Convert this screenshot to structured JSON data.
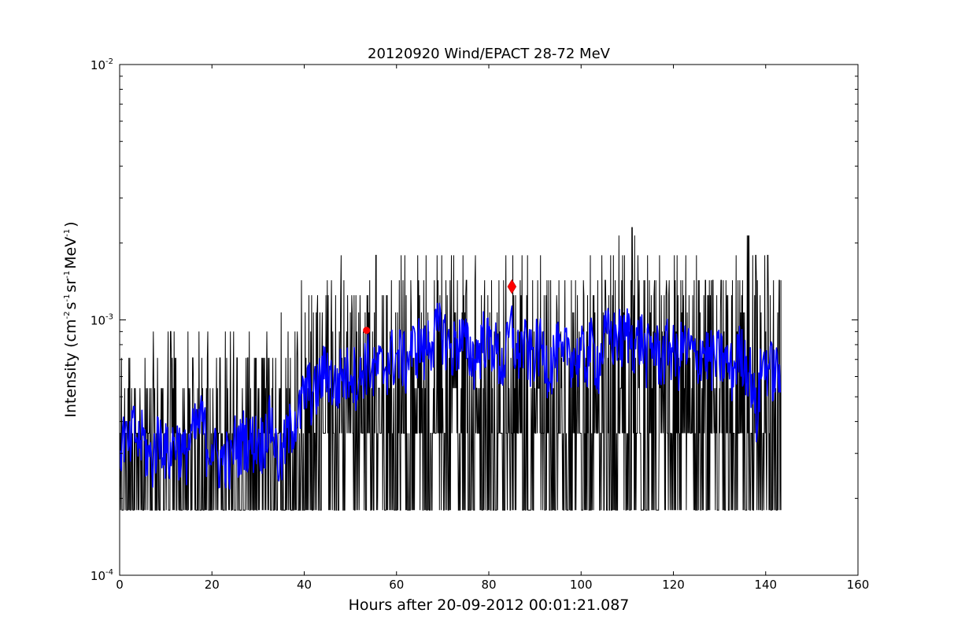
{
  "chart_data": {
    "type": "line",
    "title": "20120920 Wind/EPACT 28-72 MeV",
    "xlabel": "Hours after 20-09-2012 00:01:21.087",
    "ylabel": "Intensity (cm^-2 s^-1 sr^-1 MeV^-1)",
    "ylabel_parts": [
      "Intensity (cm",
      "-2",
      "s",
      "-1",
      "sr",
      "-1",
      "MeV",
      "-1",
      ")"
    ],
    "xlim": [
      0,
      160
    ],
    "ylim": [
      0.0001,
      0.01
    ],
    "yscale": "log",
    "xticks": [
      "0",
      "20",
      "40",
      "60",
      "80",
      "100",
      "120",
      "140",
      "160"
    ],
    "yticks": [
      {
        "base": "10",
        "exp": "-4",
        "value": 0.0001
      },
      {
        "base": "10",
        "exp": "-3",
        "value": 0.001
      },
      {
        "base": "10",
        "exp": "-2",
        "value": 0.01
      }
    ],
    "grid": false,
    "value_scale": 0.0001,
    "count_levels": [
      1.8,
      3.6,
      5.4,
      7.1,
      9.0,
      10.7,
      12.5,
      14.3,
      17.9,
      21.4,
      23.0
    ],
    "series": [
      {
        "name": "raw intensity (hourly range)",
        "color": "#000000",
        "hours_start": 0,
        "hour_max": [
          7.1,
          5.4,
          7.1,
          5.4,
          5.4,
          7.1,
          5.4,
          9.0,
          7.1,
          5.4,
          9.0,
          9.0,
          7.1,
          5.4,
          9.0,
          7.1,
          5.4,
          9.0,
          7.1,
          9.0,
          5.4,
          7.1,
          9.0,
          7.1,
          9.0,
          7.1,
          5.4,
          7.1,
          9.0,
          7.1,
          7.1,
          9.0,
          7.1,
          7.1,
          5.4,
          10.7,
          9.0,
          7.1,
          9.0,
          14.3,
          10.7,
          12.5,
          12.5,
          10.7,
          12.5,
          14.3,
          12.5,
          12.5,
          17.9,
          12.5,
          12.5,
          14.3,
          12.5,
          12.5,
          14.3,
          17.9,
          12.5,
          12.5,
          14.3,
          17.9,
          14.3,
          17.9,
          12.5,
          14.3,
          17.9,
          14.3,
          17.9,
          17.9,
          21.4,
          17.9,
          14.3,
          17.9,
          17.9,
          14.3,
          17.9,
          14.3,
          21.4,
          17.9,
          14.3,
          14.3,
          14.3,
          12.5,
          14.3,
          17.9,
          14.3,
          17.9,
          14.3,
          17.9,
          17.9,
          14.3,
          14.3,
          17.9,
          14.3,
          14.3,
          12.5,
          17.9,
          14.3,
          14.3,
          14.3,
          17.9,
          14.3,
          14.3,
          17.9,
          14.3,
          17.9,
          14.3,
          17.9,
          17.9,
          21.4,
          17.9,
          14.3,
          23.0,
          17.9,
          14.3,
          17.9,
          14.3,
          14.3,
          17.9,
          14.3,
          14.3,
          17.9,
          14.3,
          17.9,
          14.3,
          14.3,
          17.9,
          14.3,
          14.3,
          14.3,
          17.9,
          14.3,
          14.3,
          14.3,
          17.9,
          14.3,
          14.3,
          21.4,
          17.9,
          14.3,
          17.9,
          17.9,
          14.3,
          14.3,
          14.3
        ],
        "hour_min": [
          1.8,
          1.8,
          1.8,
          1.8,
          1.8,
          1.8,
          1.8,
          1.8,
          1.8,
          1.8,
          1.8,
          1.8,
          1.8,
          1.8,
          1.8,
          1.8,
          1.8,
          1.8,
          1.8,
          1.8,
          1.8,
          1.8,
          1.8,
          1.8,
          1.8,
          1.8,
          1.8,
          1.8,
          1.8,
          1.8,
          1.8,
          1.8,
          1.8,
          1.8,
          1.8,
          1.8,
          1.8,
          1.8,
          1.8,
          1.8,
          1.8,
          1.8,
          1.8,
          1.8,
          3.6,
          1.8,
          1.8,
          1.8,
          1.8,
          3.6,
          1.8,
          1.8,
          3.6,
          1.8,
          1.8,
          1.8,
          3.6,
          1.8,
          1.8,
          1.8,
          1.8,
          3.6,
          1.8,
          1.8,
          3.6,
          1.8,
          1.8,
          1.8,
          3.6,
          1.8,
          1.8,
          1.8,
          3.6,
          1.8,
          1.8,
          1.8,
          1.8,
          3.6,
          1.8,
          1.8,
          1.8,
          1.8,
          3.6,
          1.8,
          1.8,
          1.8,
          3.6,
          1.8,
          1.8,
          1.8,
          3.6,
          1.8,
          1.8,
          1.8,
          1.8,
          3.6,
          1.8,
          1.8,
          1.8,
          3.6,
          1.8,
          1.8,
          1.8,
          3.6,
          1.8,
          1.8,
          1.8,
          1.8,
          3.6,
          1.8,
          1.8,
          1.8,
          3.6,
          1.8,
          1.8,
          1.8,
          1.8,
          3.6,
          1.8,
          1.8,
          1.8,
          1.8,
          1.8,
          3.6,
          1.8,
          1.8,
          1.8,
          1.8,
          3.6,
          1.8,
          1.8,
          1.8,
          1.8,
          1.8,
          3.6,
          1.8,
          1.8,
          1.8,
          1.8,
          1.8,
          1.8,
          1.8,
          1.8,
          1.8
        ]
      },
      {
        "name": "smoothed intensity (hourly)",
        "color": "#0000ff",
        "hours_start": 0,
        "values": [
          3.2,
          3.6,
          3.0,
          3.8,
          3.3,
          3.5,
          3.0,
          2.8,
          3.4,
          3.6,
          3.1,
          3.0,
          3.5,
          3.2,
          2.9,
          3.3,
          3.6,
          3.9,
          4.1,
          3.2,
          3.3,
          2.9,
          2.8,
          3.0,
          2.7,
          3.4,
          3.2,
          3.6,
          3.3,
          3.4,
          3.5,
          3.3,
          3.9,
          4.0,
          3.0,
          2.8,
          3.4,
          3.8,
          4.2,
          4.3,
          5.2,
          5.5,
          5.0,
          5.6,
          6.2,
          6.6,
          5.8,
          5.4,
          6.3,
          6.0,
          6.6,
          6.2,
          5.7,
          6.8,
          7.0,
          6.1,
          6.6,
          6.4,
          6.9,
          7.3,
          7.0,
          7.5,
          6.8,
          7.6,
          7.9,
          8.2,
          7.4,
          8.5,
          8.6,
          9.2,
          9.3,
          8.1,
          7.6,
          8.3,
          8.5,
          8.0,
          7.5,
          7.1,
          7.8,
          8.9,
          7.9,
          8.3,
          7.2,
          6.6,
          7.8,
          9.5,
          7.0,
          8.0,
          7.9,
          7.1,
          7.8,
          8.0,
          7.4,
          6.6,
          7.2,
          7.7,
          6.5,
          8.2,
          7.4,
          7.0,
          7.5,
          6.9,
          8.1,
          7.3,
          6.8,
          8.4,
          8.9,
          8.5,
          9.0,
          8.2,
          9.1,
          8.6,
          8.0,
          8.8,
          7.3,
          7.8,
          8.0,
          7.2,
          7.4,
          8.1,
          7.5,
          7.0,
          8.1,
          7.6,
          7.7,
          6.5,
          7.9,
          7.5,
          7.2,
          6.9,
          7.3,
          7.0,
          6.6,
          6.3,
          7.6,
          7.4,
          6.8,
          6.0,
          4.0,
          6.5,
          6.9,
          6.6,
          6.3,
          6.4
        ]
      }
    ],
    "markers": [
      {
        "name": "onset",
        "shape": "circle",
        "color": "#ff0000",
        "x": 53.5,
        "y": 0.00091
      },
      {
        "name": "peak",
        "shape": "diamond",
        "color": "#ff0000",
        "x": 85.0,
        "y": 0.00135
      }
    ]
  }
}
